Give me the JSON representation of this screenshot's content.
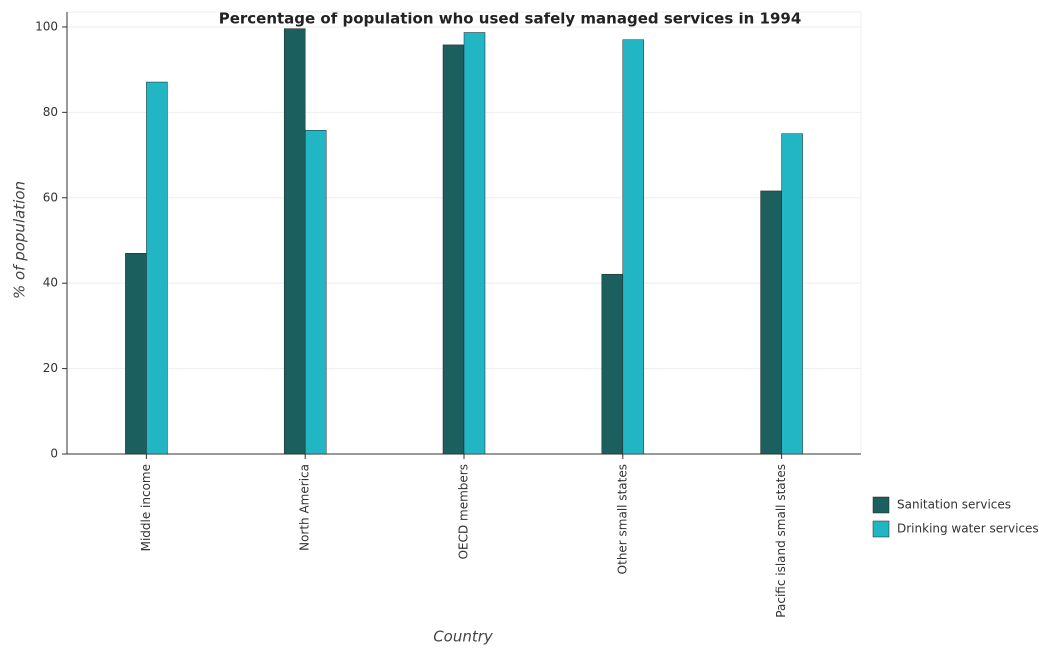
{
  "chart_data": {
    "type": "bar",
    "title": "Percentage of population who used safely managed services in 1994",
    "x_label": "Country",
    "y_label": "% of population",
    "categories": [
      "Middle income",
      "North America",
      "OECD members",
      "Other small states",
      "Pacific island small states"
    ],
    "series": [
      {
        "name": "Sanitation services",
        "color": "#1b5f5e",
        "values": [
          47.0,
          99.6,
          95.8,
          42.1,
          61.6
        ]
      },
      {
        "name": "Drinking water services",
        "color": "#22b5c4",
        "values": [
          87.1,
          75.8,
          98.7,
          97.0,
          75.0
        ]
      }
    ],
    "ylim": [
      0,
      103.5
    ],
    "yticks": [
      0,
      20,
      40,
      60,
      80,
      100
    ],
    "grid": true,
    "legend": "right"
  }
}
